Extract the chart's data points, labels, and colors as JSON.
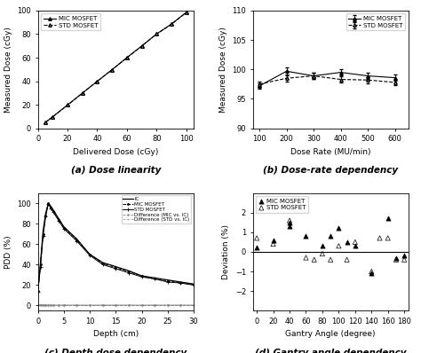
{
  "panel_a": {
    "caption": "(a) Dose linearity",
    "xlabel": "Delivered Dose (cGy)",
    "ylabel": "Measured Dose (cGy)",
    "mic_x": [
      5,
      10,
      20,
      30,
      40,
      50,
      60,
      70,
      80,
      90,
      100
    ],
    "mic_y": [
      4.9,
      9.8,
      19.8,
      29.9,
      39.9,
      49.8,
      60.0,
      69.9,
      80.1,
      88.5,
      98.5
    ],
    "std_x": [
      5,
      10,
      20,
      30,
      40,
      50,
      60,
      70,
      80,
      90,
      100
    ],
    "std_y": [
      4.8,
      9.7,
      19.7,
      29.8,
      39.8,
      49.7,
      59.9,
      69.8,
      80.0,
      88.3,
      98.2
    ],
    "xlim": [
      0,
      105
    ],
    "ylim": [
      0,
      100
    ],
    "xticks": [
      0,
      20,
      40,
      60,
      80,
      100
    ],
    "yticks": [
      0,
      20,
      40,
      60,
      80,
      100
    ]
  },
  "panel_b": {
    "caption": "(b) Dose-rate dependency",
    "xlabel": "Dose Rate (MU/min)",
    "ylabel": "Measured Dose (cGy)",
    "dose_rates": [
      100,
      200,
      300,
      400,
      500,
      600
    ],
    "mic_y": [
      97.2,
      99.7,
      98.9,
      99.5,
      98.9,
      98.6
    ],
    "mic_err": [
      0.5,
      0.6,
      0.5,
      0.5,
      0.5,
      0.5
    ],
    "std_y": [
      97.5,
      98.5,
      98.9,
      98.3,
      98.2,
      97.8
    ],
    "std_err": [
      0.5,
      0.5,
      0.5,
      0.5,
      0.5,
      0.5
    ],
    "xlim": [
      75,
      650
    ],
    "ylim": [
      90,
      110
    ],
    "xticks": [
      100,
      200,
      300,
      400,
      500,
      600
    ],
    "yticks": [
      90,
      95,
      100,
      105,
      110
    ]
  },
  "panel_c": {
    "caption": "(c) Depth dose dependency",
    "xlabel": "Depth (cm)",
    "ylabel": "PDD (%)",
    "depth": [
      0,
      0.5,
      1.0,
      1.5,
      2.0,
      2.5,
      3.0,
      4.0,
      5.0,
      7.5,
      10.0,
      12.5,
      15.0,
      17.5,
      20.0,
      22.5,
      25.0,
      27.5,
      30.0
    ],
    "ic_pdd": [
      15,
      42,
      73,
      90,
      99.8,
      97,
      93,
      85,
      77,
      65,
      50,
      42,
      38,
      34,
      29,
      27,
      25,
      23,
      21
    ],
    "mic_pdd": [
      14,
      40,
      70,
      88,
      100,
      96,
      92,
      84,
      76,
      64,
      50,
      41,
      37,
      33,
      29,
      26,
      24,
      22,
      20.5
    ],
    "std_pdd": [
      13,
      38,
      68,
      87,
      99.5,
      95,
      91,
      83,
      75,
      63,
      49,
      40,
      36,
      32,
      28,
      26,
      23,
      22,
      20
    ],
    "diff_mic": [
      0,
      0.5,
      0.2,
      0.1,
      0.0,
      0.1,
      0.1,
      0.0,
      0.1,
      0.1,
      0.0,
      0.1,
      0.1,
      0.1,
      0.0,
      0.1,
      0.1,
      0.1,
      0.1
    ],
    "diff_std": [
      0,
      -0.3,
      -0.2,
      -0.1,
      -0.1,
      -0.1,
      -0.1,
      -0.1,
      -0.1,
      -0.1,
      -0.1,
      -0.1,
      -0.1,
      -0.1,
      -0.1,
      -0.1,
      -0.1,
      -0.1,
      -0.1
    ],
    "xlim": [
      0,
      30
    ],
    "ylim": [
      -5,
      110
    ],
    "xticks": [
      0,
      5,
      10,
      15,
      20,
      25,
      30
    ],
    "yticks": [
      0,
      20,
      40,
      60,
      80,
      100
    ]
  },
  "panel_d": {
    "caption": "(d) Gantry angle dependency",
    "xlabel": "Gantry Angle (degree)",
    "ylabel": "Deviation (%)",
    "mic_x": [
      0,
      20,
      40,
      40,
      60,
      80,
      90,
      100,
      110,
      120,
      140,
      160,
      170,
      180
    ],
    "mic_y": [
      0.2,
      0.6,
      1.5,
      1.3,
      0.8,
      0.3,
      0.8,
      1.2,
      0.5,
      0.3,
      -1.1,
      1.7,
      -0.3,
      -0.2
    ],
    "std_x": [
      0,
      20,
      40,
      60,
      70,
      80,
      90,
      100,
      110,
      120,
      140,
      150,
      160,
      170,
      180
    ],
    "std_y": [
      0.7,
      0.4,
      1.6,
      -0.3,
      -0.4,
      -0.1,
      -0.4,
      0.3,
      -0.4,
      0.5,
      -1.0,
      0.7,
      0.7,
      -0.4,
      -0.4
    ],
    "xlim": [
      -5,
      185
    ],
    "ylim": [
      -3,
      3
    ],
    "xticks": [
      0,
      20,
      40,
      60,
      80,
      100,
      120,
      140,
      160,
      180
    ],
    "yticks": [
      -2,
      -1,
      0,
      1,
      2
    ]
  },
  "figsize": [
    4.74,
    3.98
  ],
  "dpi": 100
}
